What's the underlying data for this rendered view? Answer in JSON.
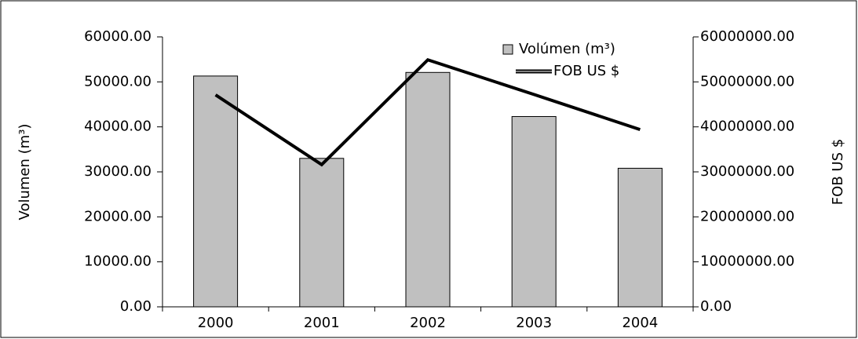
{
  "chart_data": {
    "type": "bar",
    "categories": [
      "2000",
      "2001",
      "2002",
      "2003",
      "2004"
    ],
    "series": [
      {
        "name": "Volúmen (m³)",
        "type": "bar",
        "color": "#c0c0c0",
        "values": [
          51300,
          33000,
          52100,
          42300,
          30800
        ]
      },
      {
        "name": "FOB US $",
        "type": "line",
        "axis": "y2",
        "color": "#000000",
        "values": [
          47100000,
          31600000,
          54900000,
          47200000,
          39400000
        ]
      }
    ],
    "ylabel": "Volumen (m³)",
    "y2label": "FOB US $",
    "ylim": [
      0,
      60000
    ],
    "yticks": [
      {
        "value": 0,
        "label": "0.00"
      },
      {
        "value": 10000,
        "label": "10000.00"
      },
      {
        "value": 20000,
        "label": "20000.00"
      },
      {
        "value": 30000,
        "label": "30000.00"
      },
      {
        "value": 40000,
        "label": "40000.00"
      },
      {
        "value": 50000,
        "label": "50000.00"
      },
      {
        "value": 60000,
        "label": "60000.00"
      }
    ],
    "y2lim": [
      0,
      60000000
    ],
    "y2ticks": [
      {
        "value": 0,
        "label": "0.00"
      },
      {
        "value": 10000000,
        "label": "10000000.00"
      },
      {
        "value": 20000000,
        "label": "20000000.00"
      },
      {
        "value": 30000000,
        "label": "30000000.00"
      },
      {
        "value": 40000000,
        "label": "40000000.00"
      },
      {
        "value": 50000000,
        "label": "50000000.00"
      },
      {
        "value": 60000000,
        "label": "60000000.00"
      }
    ],
    "legend": "top-right"
  }
}
